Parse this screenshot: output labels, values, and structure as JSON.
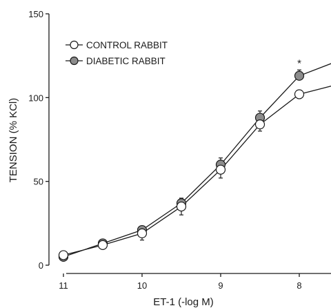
{
  "chart_data": {
    "type": "line",
    "title": "",
    "xlabel": "ET-1 (-log M)",
    "ylabel": "TENSION (% KCl)",
    "x_ticks": [
      "11",
      "10",
      "9",
      "8"
    ],
    "y_ticks": [
      "0",
      "50",
      "100",
      "150"
    ],
    "xlim": [
      11.2,
      7.6
    ],
    "ylim": [
      0,
      150
    ],
    "x_reversed": true,
    "legend_position": "top-left",
    "x": [
      11,
      10.5,
      10,
      9.5,
      9,
      8.5,
      8,
      7.5
    ],
    "series": [
      {
        "name": "CONTROL RABBIT",
        "marker": "open-circle",
        "color": "#ffffff",
        "values": [
          6,
          12,
          19,
          35,
          57,
          84,
          102,
          108
        ],
        "errors": [
          1,
          1.5,
          4,
          5,
          5,
          4,
          2.5,
          2
        ]
      },
      {
        "name": "DIABETIC RABBIT",
        "marker": "filled-circle",
        "color": "#8c8c8c",
        "values": [
          5,
          13,
          21,
          37,
          60,
          88,
          113,
          122
        ],
        "errors": [
          1,
          1.5,
          2,
          3,
          4,
          4,
          3.5,
          3
        ]
      }
    ],
    "annotations": [
      {
        "text": "*",
        "x": 8,
        "y": 121
      }
    ]
  }
}
